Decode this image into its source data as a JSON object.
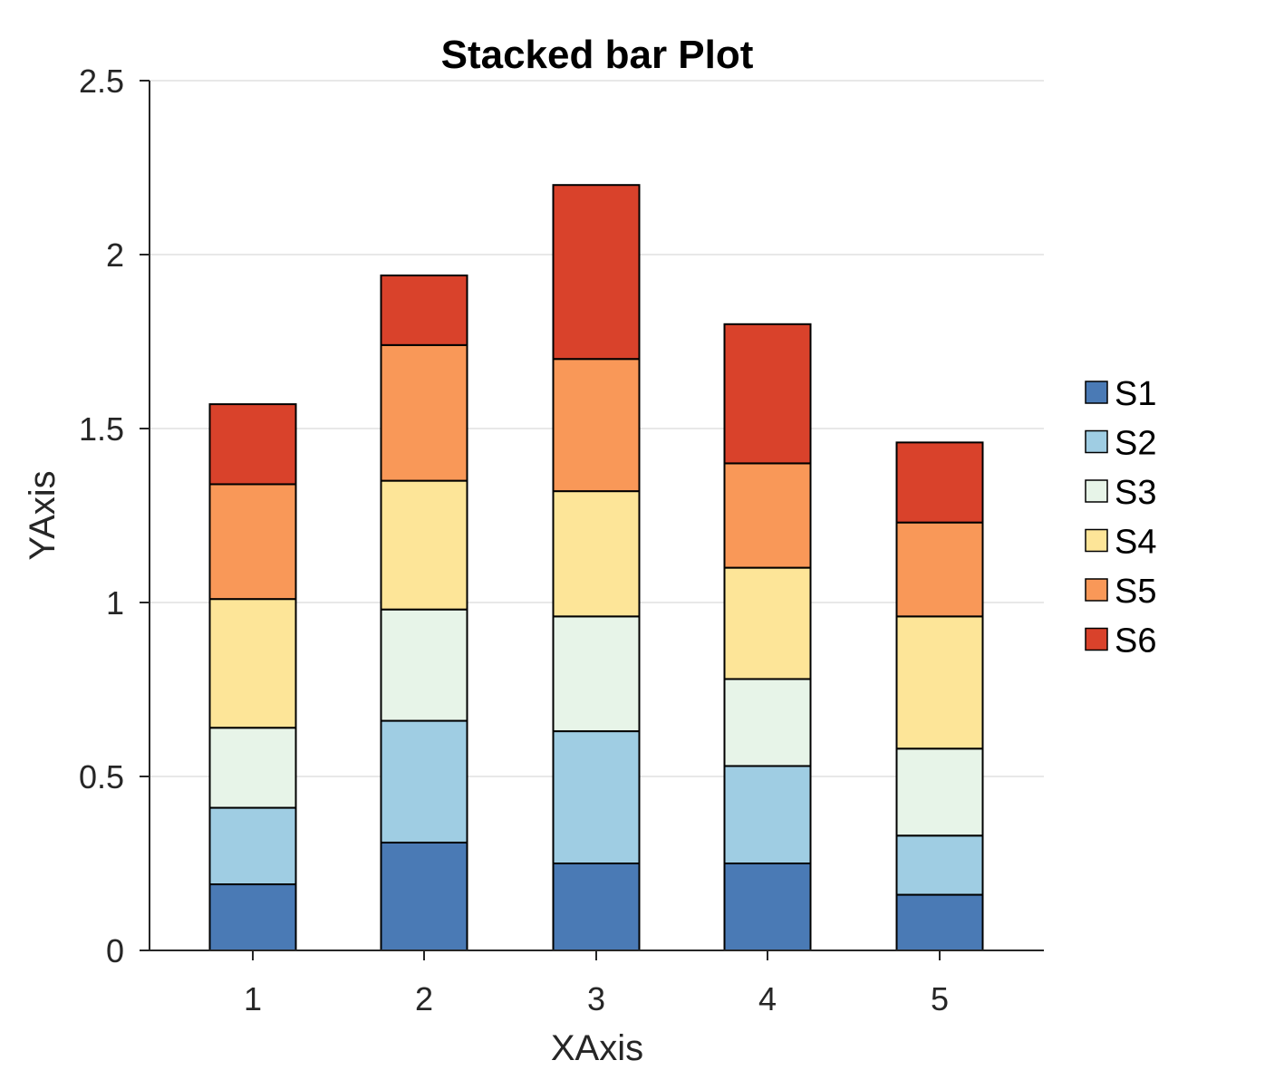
{
  "chart_data": {
    "type": "bar",
    "stacked": true,
    "title": "Stacked bar Plot",
    "xlabel": "XAxis",
    "ylabel": "YAxis",
    "categories": [
      "1",
      "2",
      "3",
      "4",
      "5"
    ],
    "ylim": [
      0,
      2.5
    ],
    "yticks": [
      "0",
      "0.5",
      "1",
      "1.5",
      "2",
      "2.5"
    ],
    "ytick_values": [
      0,
      0.5,
      1,
      1.5,
      2,
      2.5
    ],
    "grid": "horizontal",
    "legend_position": "right",
    "series": [
      {
        "name": "S1",
        "color": "#4a7ab5",
        "values": [
          0.19,
          0.31,
          0.25,
          0.25,
          0.16
        ]
      },
      {
        "name": "S2",
        "color": "#9fcde3",
        "values": [
          0.22,
          0.35,
          0.38,
          0.28,
          0.17
        ]
      },
      {
        "name": "S3",
        "color": "#e7f4e8",
        "values": [
          0.23,
          0.32,
          0.33,
          0.25,
          0.25
        ]
      },
      {
        "name": "S4",
        "color": "#fde598",
        "values": [
          0.37,
          0.37,
          0.36,
          0.32,
          0.38
        ]
      },
      {
        "name": "S5",
        "color": "#f99858",
        "values": [
          0.33,
          0.39,
          0.38,
          0.3,
          0.27
        ]
      },
      {
        "name": "S6",
        "color": "#d9422b",
        "values": [
          0.23,
          0.2,
          0.5,
          0.4,
          0.23
        ]
      }
    ]
  }
}
